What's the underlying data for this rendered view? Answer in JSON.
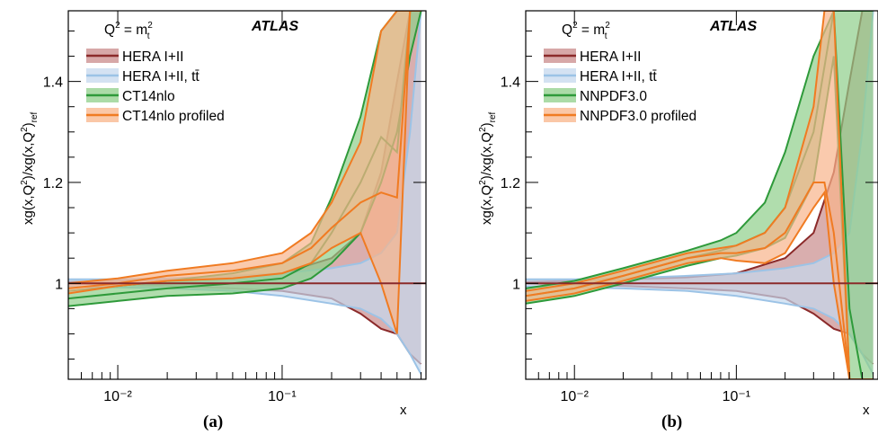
{
  "chart_data": [
    {
      "type": "area",
      "panel_label": "(a)",
      "experiment": "ATLAS",
      "scale_label": "Q² = m²_t",
      "xlabel": "x",
      "ylabel": "xg(x,Q²)/xg(x,Q²)_ref",
      "x_scale": "log",
      "xlim": [
        0.005,
        0.75
      ],
      "ylim": [
        0.81,
        1.54
      ],
      "xticks": [
        {
          "value": 0.01,
          "label": "10⁻²"
        },
        {
          "value": 0.1,
          "label": "10⁻¹"
        }
      ],
      "yticks": [
        {
          "value": 1.0,
          "label": "1"
        },
        {
          "value": 1.2,
          "label": "1.2"
        },
        {
          "value": 1.4,
          "label": "1.4"
        }
      ],
      "legend_position": "top-left",
      "series": [
        {
          "name": "HERA I+II",
          "color": "#8b2a2a",
          "fill": "#c98b8b",
          "x": [
            0.005,
            0.01,
            0.02,
            0.05,
            0.1,
            0.2,
            0.3,
            0.4,
            0.5,
            0.6,
            0.7
          ],
          "lower": [
            1.0,
            0.997,
            0.995,
            0.99,
            0.985,
            0.97,
            0.94,
            0.91,
            0.9,
            0.86,
            0.84
          ],
          "upper": [
            1.003,
            1.005,
            1.008,
            1.012,
            1.02,
            1.05,
            1.1,
            1.22,
            1.4,
            1.54,
            1.54
          ]
        },
        {
          "name": "HERA I+II, tt̄",
          "color": "#9cc3e6",
          "fill": "#c5d8ee",
          "x": [
            0.005,
            0.01,
            0.02,
            0.05,
            0.1,
            0.2,
            0.3,
            0.4,
            0.5,
            0.6,
            0.7
          ],
          "lower": [
            0.994,
            0.992,
            0.99,
            0.985,
            0.975,
            0.96,
            0.95,
            0.93,
            0.9,
            0.86,
            0.82
          ],
          "upper": [
            1.008,
            1.008,
            1.01,
            1.015,
            1.02,
            1.03,
            1.04,
            1.06,
            1.1,
            1.3,
            1.54
          ]
        },
        {
          "name": "CT14nlo",
          "color": "#2e9a3a",
          "fill": "#8fcf8a",
          "x": [
            0.005,
            0.01,
            0.02,
            0.05,
            0.1,
            0.15,
            0.2,
            0.3,
            0.4,
            0.5,
            0.6,
            0.7
          ],
          "lower": [
            0.955,
            0.965,
            0.975,
            0.98,
            0.99,
            1.01,
            1.04,
            1.1,
            1.2,
            1.3,
            1.45,
            1.54
          ],
          "central": [
            0.97,
            0.98,
            0.99,
            1.0,
            1.01,
            1.04,
            1.1,
            1.2,
            1.29,
            1.26,
            1.54,
            1.54
          ],
          "upper": [
            0.985,
            0.995,
            1.005,
            1.02,
            1.04,
            1.08,
            1.17,
            1.33,
            1.5,
            1.54,
            1.54,
            1.54
          ]
        },
        {
          "name": "CT14nlo profiled",
          "color": "#f07b22",
          "fill": "#f8b48a",
          "x": [
            0.005,
            0.01,
            0.02,
            0.05,
            0.1,
            0.15,
            0.2,
            0.3,
            0.4,
            0.5,
            0.6,
            0.7
          ],
          "lower": [
            0.98,
            0.995,
            1.005,
            1.01,
            1.02,
            1.04,
            1.07,
            1.1,
            1.0,
            0.9,
            1.54,
            1.54
          ],
          "central": [
            0.99,
            1.0,
            1.015,
            1.025,
            1.04,
            1.07,
            1.11,
            1.16,
            1.18,
            1.17,
            1.54,
            1.54
          ],
          "upper": [
            1.0,
            1.01,
            1.025,
            1.04,
            1.06,
            1.1,
            1.16,
            1.28,
            1.5,
            1.54,
            1.54,
            1.54
          ]
        }
      ]
    },
    {
      "type": "area",
      "panel_label": "(b)",
      "experiment": "ATLAS",
      "scale_label": "Q² = m²_t",
      "xlabel": "x",
      "ylabel": "xg(x,Q²)/xg(x,Q²)_ref",
      "x_scale": "log",
      "xlim": [
        0.005,
        0.75
      ],
      "ylim": [
        0.81,
        1.54
      ],
      "xticks": [
        {
          "value": 0.01,
          "label": "10⁻²"
        },
        {
          "value": 0.1,
          "label": "10⁻¹"
        }
      ],
      "yticks": [
        {
          "value": 1.0,
          "label": "1"
        },
        {
          "value": 1.2,
          "label": "1.2"
        },
        {
          "value": 1.4,
          "label": "1.4"
        }
      ],
      "legend_position": "top-left",
      "series": [
        {
          "name": "HERA I+II",
          "color": "#8b2a2a",
          "fill": "#c98b8b",
          "x": [
            0.005,
            0.01,
            0.02,
            0.05,
            0.1,
            0.2,
            0.3,
            0.4,
            0.5,
            0.6,
            0.7
          ],
          "lower": [
            1.0,
            0.997,
            0.995,
            0.99,
            0.985,
            0.97,
            0.94,
            0.91,
            0.9,
            0.86,
            0.84
          ],
          "upper": [
            1.003,
            1.005,
            1.008,
            1.012,
            1.02,
            1.05,
            1.1,
            1.22,
            1.4,
            1.54,
            1.54
          ]
        },
        {
          "name": "HERA I+II, tt̄",
          "color": "#9cc3e6",
          "fill": "#c5d8ee",
          "x": [
            0.005,
            0.01,
            0.02,
            0.05,
            0.1,
            0.2,
            0.3,
            0.4,
            0.5,
            0.6,
            0.7
          ],
          "lower": [
            0.994,
            0.992,
            0.99,
            0.985,
            0.975,
            0.96,
            0.95,
            0.93,
            0.9,
            0.86,
            0.82
          ],
          "upper": [
            1.008,
            1.008,
            1.01,
            1.015,
            1.02,
            1.03,
            1.04,
            1.06,
            1.1,
            1.3,
            1.54
          ]
        },
        {
          "name": "NNPDF3.0",
          "color": "#2e9a3a",
          "fill": "#8fcf8a",
          "x": [
            0.005,
            0.01,
            0.02,
            0.05,
            0.08,
            0.1,
            0.15,
            0.2,
            0.3,
            0.4,
            0.5,
            0.6,
            0.7
          ],
          "lower": [
            0.96,
            0.975,
            1.0,
            1.035,
            1.05,
            1.055,
            1.07,
            1.09,
            1.2,
            1.45,
            0.81,
            0.81,
            0.81
          ],
          "central": [
            0.975,
            0.99,
            1.015,
            1.05,
            1.065,
            1.075,
            1.1,
            1.15,
            1.3,
            1.54,
            0.95,
            0.81,
            0.81
          ],
          "upper": [
            0.99,
            1.005,
            1.03,
            1.065,
            1.085,
            1.1,
            1.16,
            1.26,
            1.45,
            1.54,
            1.54,
            1.54,
            1.54
          ]
        },
        {
          "name": "NNPDF3.0 profiled",
          "color": "#f07b22",
          "fill": "#f8b48a",
          "x": [
            0.005,
            0.01,
            0.02,
            0.05,
            0.08,
            0.1,
            0.15,
            0.2,
            0.3,
            0.35,
            0.4,
            0.5,
            0.6,
            0.7
          ],
          "lower": [
            0.965,
            0.98,
            1.005,
            1.04,
            1.05,
            1.045,
            1.04,
            1.06,
            1.15,
            1.18,
            1.0,
            0.81,
            0.81,
            0.81
          ],
          "central": [
            0.975,
            0.99,
            1.015,
            1.05,
            1.06,
            1.06,
            1.07,
            1.1,
            1.2,
            1.2,
            1.1,
            0.81,
            0.81,
            0.81
          ],
          "upper": [
            0.985,
            1.0,
            1.025,
            1.06,
            1.07,
            1.075,
            1.1,
            1.15,
            1.35,
            1.54,
            1.54,
            0.81,
            0.81,
            0.81
          ]
        }
      ]
    }
  ]
}
